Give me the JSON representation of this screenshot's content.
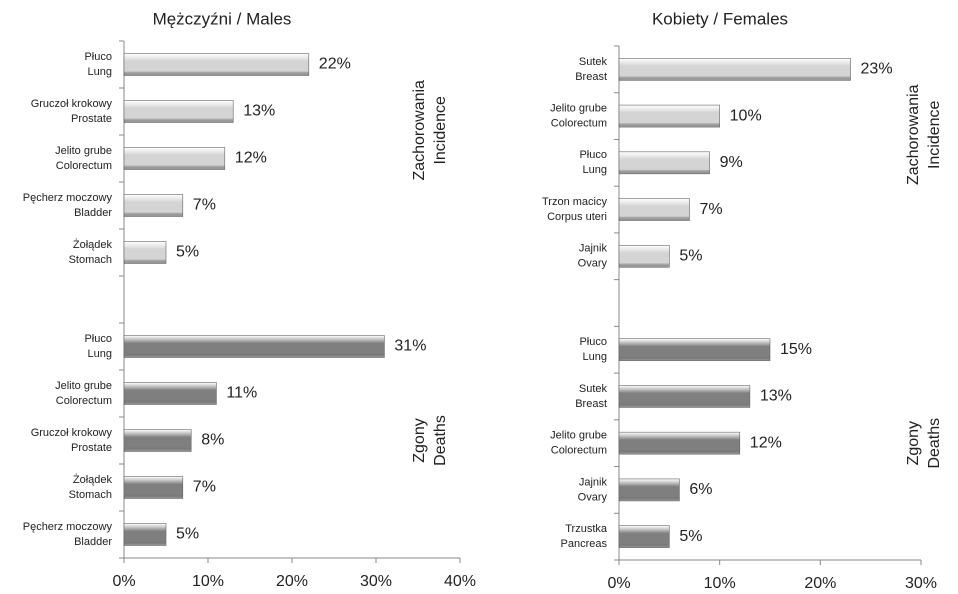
{
  "chart_data": [
    {
      "type": "bar",
      "orientation": "horizontal",
      "title": "Mężczyźni / Males",
      "xlim": [
        0,
        40
      ],
      "xticks": [
        {
          "value": 0,
          "label": "0%"
        },
        {
          "value": 10,
          "label": "10%"
        },
        {
          "value": 20,
          "label": "20%"
        },
        {
          "value": 30,
          "label": "30%"
        },
        {
          "value": 40,
          "label": "40%"
        }
      ],
      "groups": [
        {
          "label": [
            "Zachorowania",
            "Incidence"
          ],
          "color": "#d4d4d4",
          "categories": [
            [
              "Płuco",
              "Lung"
            ],
            [
              "Gruczoł krokowy",
              "Prostate"
            ],
            [
              "Jelito grube",
              "Colorectum"
            ],
            [
              "Pęcherz moczowy",
              "Bladder"
            ],
            [
              "Żołądek",
              "Stomach"
            ]
          ],
          "values": [
            22,
            13,
            12,
            7,
            5
          ],
          "value_labels": [
            "22%",
            "13%",
            "12%",
            "7%",
            "5%"
          ]
        },
        {
          "label": [
            "Zgony",
            "Deaths"
          ],
          "color": "#7f7f7f",
          "categories": [
            [
              "Płuco",
              "Lung"
            ],
            [
              "Jelito grube",
              "Colorectum"
            ],
            [
              "Gruczoł krokowy",
              "Prostate"
            ],
            [
              "Żołądek",
              "Stomach"
            ],
            [
              "Pęcherz moczowy",
              "Bladder"
            ]
          ],
          "values": [
            31,
            11,
            8,
            7,
            5
          ],
          "value_labels": [
            "31%",
            "11%",
            "8%",
            "7%",
            "5%"
          ]
        }
      ]
    },
    {
      "type": "bar",
      "orientation": "horizontal",
      "title": "Kobiety / Females",
      "xlim": [
        0,
        30
      ],
      "xticks": [
        {
          "value": 0,
          "label": "0%"
        },
        {
          "value": 10,
          "label": "10%"
        },
        {
          "value": 20,
          "label": "20%"
        },
        {
          "value": 30,
          "label": "30%"
        }
      ],
      "groups": [
        {
          "label": [
            "Zachorowania",
            "Incidence"
          ],
          "color": "#d4d4d4",
          "categories": [
            [
              "Sutek",
              "Breast"
            ],
            [
              "Jelito grube",
              "Colorectum"
            ],
            [
              "Płuco",
              "Lung"
            ],
            [
              "Trzon macicy",
              "Corpus uteri"
            ],
            [
              "Jajnik",
              "Ovary"
            ]
          ],
          "values": [
            23,
            10,
            9,
            7,
            5
          ],
          "value_labels": [
            "23%",
            "10%",
            "9%",
            "7%",
            "5%"
          ]
        },
        {
          "label": [
            "Zgony",
            "Deaths"
          ],
          "color": "#7f7f7f",
          "categories": [
            [
              "Płuco",
              "Lung"
            ],
            [
              "Sutek",
              "Breast"
            ],
            [
              "Jelito grube",
              "Colorectum"
            ],
            [
              "Jajnik",
              "Ovary"
            ],
            [
              "Trzustka",
              "Pancreas"
            ]
          ],
          "values": [
            15,
            13,
            12,
            6,
            5
          ],
          "value_labels": [
            "15%",
            "13%",
            "12%",
            "6%",
            "5%"
          ]
        }
      ]
    }
  ]
}
